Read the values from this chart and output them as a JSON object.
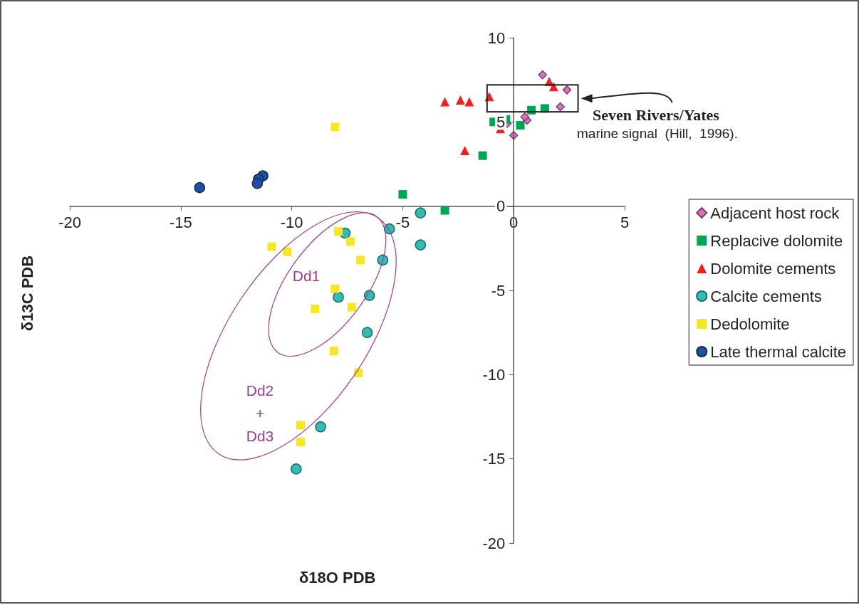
{
  "chart_data": {
    "type": "scatter",
    "xlabel": "δ18O PDB",
    "ylabel": "δ13C PDB",
    "xlim": [
      -20,
      5
    ],
    "xticks": [
      -20,
      -15,
      -10,
      -5,
      0,
      5
    ],
    "ylim": [
      -20,
      10
    ],
    "yticks": [
      -20,
      -15,
      -10,
      -5,
      0,
      5,
      10
    ],
    "grid": false,
    "legend": "right",
    "annotations": [
      "Seven Rivers/Yates",
      "marine signal  (Hill,  1996).",
      "Dd1",
      "Dd2\n+\nDd3"
    ],
    "series": [
      {
        "name": "Adjacent host rock",
        "color": "#e070c0",
        "marker": "diamond",
        "x": [
          1.3,
          2.4,
          2.1,
          0.0,
          -0.3,
          0.6,
          0.5
        ],
        "values": [
          7.8,
          6.9,
          5.9,
          4.2,
          4.9,
          5.1,
          5.3
        ]
      },
      {
        "name": "Replacive dolomite",
        "color": "#00a650",
        "marker": "square",
        "x": [
          -0.9,
          -0.35,
          0.3,
          -1.4,
          -5.0,
          -3.1,
          0.8,
          1.4
        ],
        "values": [
          5.0,
          5.15,
          4.8,
          3.0,
          0.7,
          -0.25,
          5.7,
          5.8
        ]
      },
      {
        "name": "Dolomite cements",
        "color": "#ee2020",
        "marker": "triangle",
        "x": [
          -3.1,
          -2.4,
          -2.0,
          -1.1,
          -0.6,
          -2.2,
          1.6,
          1.8
        ],
        "values": [
          6.2,
          6.3,
          6.2,
          6.5,
          4.6,
          3.3,
          7.4,
          7.1
        ]
      },
      {
        "name": "Calcite cements",
        "color": "#33bbb5",
        "marker": "circle",
        "x": [
          -4.2,
          -5.6,
          -4.2,
          -5.9,
          -6.5,
          -7.9,
          -6.6,
          -8.7,
          -9.8,
          -7.6
        ],
        "values": [
          -0.4,
          -1.35,
          -2.3,
          -3.2,
          -5.3,
          -5.4,
          -7.5,
          -13.1,
          -15.6,
          -1.6
        ]
      },
      {
        "name": "Dedolomite",
        "color": "#f7e623",
        "marker": "square",
        "x": [
          -10.9,
          -10.2,
          -7.9,
          -7.35,
          -6.9,
          -8.05,
          -8.95,
          -7.3,
          -8.1,
          -7.0,
          -9.6,
          -9.6,
          -8.05
        ],
        "values": [
          -2.4,
          -2.7,
          -1.5,
          -2.1,
          -3.2,
          -4.9,
          -6.1,
          -6.0,
          -8.6,
          -9.9,
          -13.0,
          -14.0,
          4.7
        ]
      },
      {
        "name": "Late thermal calcite",
        "color": "#1f4fa0",
        "marker": "circle",
        "x": [
          -14.15,
          -11.3,
          -11.5,
          -11.55
        ],
        "values": [
          1.1,
          1.8,
          1.6,
          1.35
        ]
      }
    ]
  }
}
